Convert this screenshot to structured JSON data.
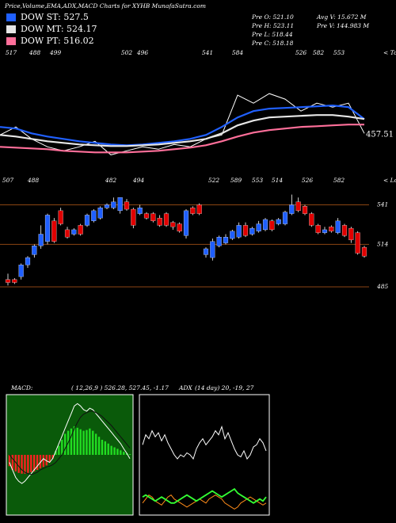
{
  "header": {
    "title": "Price,Volume,EMA,ADX,MACD Charts for XYHB MunafaSutra.com",
    "stats": [
      "Pre  O: 521.10",
      "Pre  H: 523.11",
      "Pre  L: 518.44",
      "Pre  C: 518.18",
      "Avg  V: 15.672  M",
      "Pre  V: 144.983  M"
    ]
  },
  "chart_data": [
    {
      "type": "line",
      "ylim": [
        420,
        526
      ],
      "top_labels": [
        517,
        488,
        499,
        502,
        496,
        541,
        584,
        526,
        582,
        553
      ],
      "tops_label": "< Tops",
      "low_labels": [
        507,
        488,
        482,
        494,
        522,
        589,
        553,
        514,
        526,
        582
      ],
      "lows_label": "< Lows",
      "last_value": 457.51,
      "series": [
        {
          "color": "#ffffff",
          "values": [
            457.25,
            463.5,
            454.1,
            447.9,
            444.75,
            447.9,
            452.25,
            441.6,
            444.75,
            447.9,
            446,
            449.75,
            447.9,
            454.1,
            457.25,
            488.5,
            482.25,
            489.75,
            485.4,
            476,
            482.25,
            479.1,
            482.25,
            458.5
          ]
        },
        {
          "name": "DOW ST: 527.5",
          "color": "#2060ff",
          "values": [
            463.5,
            462.25,
            458.5,
            456,
            454.1,
            452.25,
            451,
            449.75,
            449.1,
            449.75,
            451,
            452.25,
            454.1,
            457.25,
            463.5,
            471,
            476,
            477.9,
            478.5,
            479.1,
            479.75,
            480.4,
            479.1,
            469.75
          ]
        },
        {
          "name": "DOW MT: 524.17",
          "color": "#e6e6e6",
          "values": [
            457.25,
            456,
            454.1,
            452.25,
            451,
            449.75,
            449.1,
            448.5,
            448.5,
            449.1,
            449.75,
            451,
            452.25,
            454.1,
            458.5,
            464.75,
            468.5,
            471,
            471.6,
            472.25,
            472.9,
            472.9,
            471.6,
            469.75
          ]
        },
        {
          "name": "DOW PT: 516.02",
          "color": "#ff6f9a",
          "values": [
            447.9,
            447.25,
            446.6,
            446,
            444.75,
            444.1,
            443.5,
            443.5,
            443.5,
            444.1,
            444.75,
            446,
            447.25,
            449.1,
            452.25,
            456,
            459.1,
            461,
            462.25,
            463.5,
            464.1,
            464.75,
            465.4,
            465.4
          ]
        }
      ]
    },
    {
      "type": "candlestick",
      "ylim": [
        478,
        551
      ],
      "levels": [
        541,
        514,
        485
      ],
      "up_color": "#1f5fff",
      "down_color": "#e00000",
      "open": [
        490,
        490,
        492,
        500,
        507,
        513,
        516,
        530,
        537,
        524,
        521,
        527,
        527,
        530,
        532,
        539,
        539,
        537,
        543,
        538,
        535,
        535,
        535,
        532,
        535,
        529,
        528,
        520,
        539,
        541,
        507,
        505,
        513,
        515,
        518,
        519,
        527,
        521,
        523,
        524,
        530,
        528,
        528,
        535,
        543,
        540,
        535,
        527,
        522,
        526,
        522,
        527,
        525,
        522,
        512
      ],
      "high": [
        494,
        491,
        501,
        506,
        514,
        527,
        535,
        532,
        539,
        526,
        525,
        528,
        535,
        538,
        540,
        542,
        546,
        546,
        545,
        539,
        541,
        536,
        536,
        534,
        536,
        530,
        529,
        538,
        540,
        542,
        512,
        518,
        520,
        521,
        524,
        529,
        529,
        526,
        530,
        532,
        531,
        532,
        537,
        548,
        546,
        541,
        536,
        528,
        526,
        527,
        532,
        528,
        526,
        523,
        513
      ],
      "low": [
        486,
        487,
        490,
        498,
        505,
        511,
        514,
        515,
        527,
        518,
        520,
        520,
        526,
        529,
        531,
        538,
        538,
        535,
        537,
        525,
        534,
        531,
        529,
        526,
        526,
        524,
        522,
        518,
        534,
        534,
        505,
        503,
        512,
        514,
        517,
        518,
        519,
        520,
        522,
        523,
        523,
        527,
        527,
        534,
        536,
        534,
        526,
        521,
        521,
        522,
        521,
        519,
        515,
        507,
        505
      ],
      "close": [
        488,
        488,
        500,
        505,
        513,
        521,
        534,
        516,
        528,
        519,
        524,
        521,
        534,
        537,
        539,
        541,
        543,
        546,
        538,
        527,
        539,
        532,
        530,
        527,
        527,
        526,
        523,
        537,
        535,
        535,
        511,
        516,
        519,
        519,
        523,
        527,
        520,
        525,
        528,
        531,
        524,
        531,
        536,
        541,
        537,
        535,
        527,
        522,
        524,
        523,
        530,
        520,
        517,
        508,
        506
      ]
    },
    {
      "type": "macd",
      "title": "MACD:",
      "params": "( 12,26,9 ) 526.28,  527.45,  -1.17",
      "ylim": [
        -8,
        8
      ],
      "color": "#0a5a0a",
      "up_color": "#22dd22",
      "down_color": "#ff2020",
      "values": [
        -1.5,
        -2,
        -2.2,
        -2.4,
        -2.5,
        -2.5,
        -2.4,
        -2.3,
        -2.2,
        -2,
        -1.8,
        -1.6,
        -1.4,
        -1,
        -0.5,
        0.5,
        1.2,
        2,
        2.8,
        3.2,
        3.5,
        3.8,
        3.6,
        3.4,
        3.2,
        3.3,
        3.5,
        3.2,
        2.8,
        2.4,
        2,
        1.8,
        1.5,
        1.2,
        1,
        0.8,
        0.6,
        0.4,
        0.2,
        0.1
      ],
      "series": [
        {
          "color": "#ffffff",
          "values": [
            -1,
            -2,
            -3,
            -3.5,
            -3.8,
            -3.5,
            -3,
            -2.5,
            -2,
            -1.5,
            -1,
            -0.5,
            -0.8,
            -1,
            -0.5,
            0.5,
            1.5,
            2.5,
            3.5,
            4.5,
            5.5,
            6.5,
            6.8,
            6.5,
            6,
            5.8,
            6.2,
            6,
            5.5,
            5,
            4.5,
            4,
            3.5,
            3,
            2.5,
            2,
            1.5,
            0.8,
            0.2,
            -0.5
          ]
        },
        {
          "color": "#111111",
          "values": [
            0,
            -0.5,
            -1,
            -1.5,
            -2,
            -2.3,
            -2.5,
            -2.6,
            -2.5,
            -2.3,
            -2,
            -1.8,
            -1.6,
            -1.5,
            -1.3,
            -1,
            -0.5,
            0,
            0.8,
            1.6,
            2.5,
            3.5,
            4.3,
            5,
            5.4,
            5.6,
            5.8,
            5.8,
            5.6,
            5.4,
            5.1,
            4.7,
            4.3,
            3.9,
            3.4,
            2.9,
            2.4,
            1.9,
            1.4,
            0.9
          ]
        }
      ]
    },
    {
      "type": "adx",
      "title": "ADX",
      "params": "(14  day) 20,  -19,  27",
      "ylim": [
        0,
        60
      ],
      "color": "#000000",
      "series": [
        {
          "color": "#ffffff",
          "values": [
            35,
            40,
            38,
            42,
            39,
            41,
            37,
            40,
            36,
            33,
            30,
            28,
            30,
            29,
            31,
            30,
            28,
            33,
            36,
            38,
            35,
            37,
            39,
            42,
            40,
            44,
            38,
            41,
            37,
            33,
            30,
            29,
            32,
            28,
            30,
            34,
            35,
            38,
            36,
            32
          ]
        },
        {
          "color": "#ff8c1a",
          "values": [
            6,
            8,
            10,
            9,
            7,
            6,
            5,
            7,
            9,
            10,
            8,
            7,
            6,
            5,
            4,
            5,
            6,
            7,
            8,
            7,
            6,
            8,
            9,
            10,
            9,
            8,
            6,
            5,
            4,
            3,
            4,
            6,
            7,
            8,
            9,
            8,
            7,
            6,
            5,
            6
          ]
        },
        {
          "color": "#33ff33",
          "values": [
            9,
            10,
            9,
            8,
            7,
            8,
            9,
            8,
            7,
            6,
            6,
            7,
            8,
            9,
            10,
            9,
            8,
            7,
            8,
            9,
            10,
            11,
            12,
            11,
            10,
            9,
            10,
            11,
            12,
            13,
            11,
            10,
            9,
            8,
            7,
            6,
            7,
            8,
            7,
            9
          ]
        }
      ]
    }
  ]
}
